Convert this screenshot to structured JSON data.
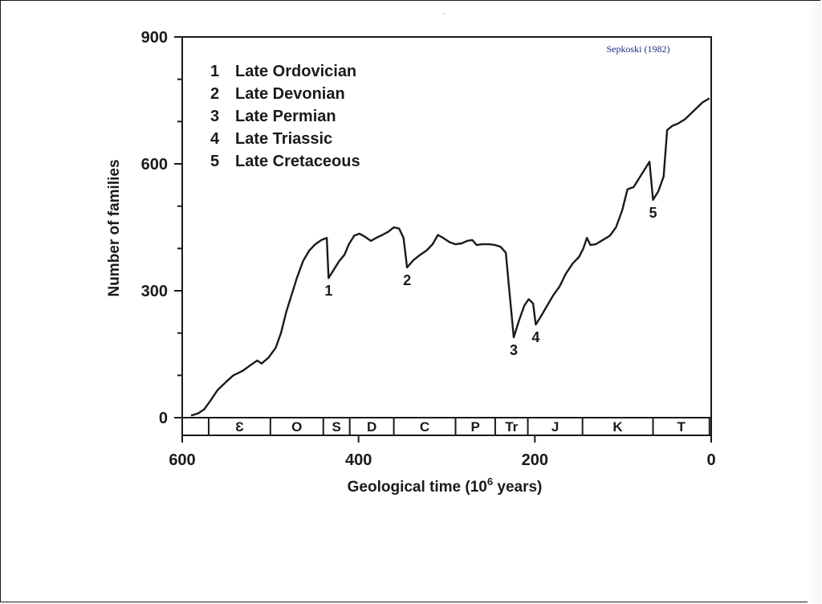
{
  "chart_data": {
    "type": "line",
    "title": "",
    "xlabel": "Geological time (10⁶ years)",
    "ylabel": "Number of families",
    "source_note": "Sepkoski (1982)",
    "xlim": [
      600,
      0
    ],
    "ylim": [
      0,
      900
    ],
    "x_ticks": [
      600,
      400,
      200,
      0
    ],
    "y_ticks": [
      0,
      300,
      600,
      900
    ],
    "grid": false,
    "legend_position": "top-left",
    "legend": [
      {
        "num": "1",
        "label": "Late Ordovician"
      },
      {
        "num": "2",
        "label": "Late Devonian"
      },
      {
        "num": "3",
        "label": "Late Permian"
      },
      {
        "num": "4",
        "label": "Late Triassic"
      },
      {
        "num": "5",
        "label": "Late Cretaceous"
      }
    ],
    "series": [
      {
        "points": [
          [
            590,
            5
          ],
          [
            582,
            10
          ],
          [
            575,
            20
          ],
          [
            568,
            40
          ],
          [
            560,
            65
          ],
          [
            550,
            85
          ],
          [
            542,
            100
          ],
          [
            532,
            110
          ],
          [
            522,
            125
          ],
          [
            515,
            135
          ],
          [
            510,
            128
          ],
          [
            502,
            142
          ],
          [
            494,
            165
          ],
          [
            488,
            200
          ],
          [
            482,
            250
          ],
          [
            476,
            290
          ],
          [
            470,
            330
          ],
          [
            463,
            370
          ],
          [
            456,
            395
          ],
          [
            449,
            410
          ],
          [
            442,
            420
          ],
          [
            436,
            425
          ],
          [
            434,
            330
          ],
          [
            428,
            350
          ],
          [
            422,
            370
          ],
          [
            416,
            385
          ],
          [
            411,
            410
          ],
          [
            405,
            430
          ],
          [
            399,
            435
          ],
          [
            393,
            428
          ],
          [
            386,
            418
          ],
          [
            380,
            425
          ],
          [
            373,
            432
          ],
          [
            366,
            440
          ],
          [
            360,
            450
          ],
          [
            354,
            447
          ],
          [
            349,
            425
          ],
          [
            345,
            355
          ],
          [
            338,
            372
          ],
          [
            330,
            385
          ],
          [
            323,
            395
          ],
          [
            316,
            410
          ],
          [
            310,
            432
          ],
          [
            304,
            425
          ],
          [
            297,
            415
          ],
          [
            290,
            410
          ],
          [
            283,
            412
          ],
          [
            277,
            418
          ],
          [
            271,
            420
          ],
          [
            266,
            408
          ],
          [
            260,
            410
          ],
          [
            252,
            410
          ],
          [
            245,
            408
          ],
          [
            239,
            404
          ],
          [
            233,
            390
          ],
          [
            229,
            300
          ],
          [
            224,
            190
          ],
          [
            218,
            230
          ],
          [
            212,
            265
          ],
          [
            207,
            280
          ],
          [
            202,
            270
          ],
          [
            199,
            220
          ],
          [
            193,
            240
          ],
          [
            186,
            265
          ],
          [
            179,
            290
          ],
          [
            172,
            310
          ],
          [
            165,
            340
          ],
          [
            157,
            365
          ],
          [
            150,
            380
          ],
          [
            145,
            400
          ],
          [
            141,
            425
          ],
          [
            137,
            408
          ],
          [
            131,
            410
          ],
          [
            123,
            420
          ],
          [
            115,
            430
          ],
          [
            108,
            450
          ],
          [
            101,
            490
          ],
          [
            95,
            540
          ],
          [
            88,
            545
          ],
          [
            82,
            565
          ],
          [
            76,
            585
          ],
          [
            70,
            605
          ],
          [
            66,
            515
          ],
          [
            60,
            535
          ],
          [
            54,
            570
          ],
          [
            50,
            680
          ],
          [
            44,
            690
          ],
          [
            38,
            695
          ],
          [
            30,
            705
          ],
          [
            20,
            725
          ],
          [
            10,
            745
          ],
          [
            2,
            755
          ]
        ]
      }
    ],
    "events": [
      {
        "num": "1",
        "x": 434,
        "y": 330
      },
      {
        "num": "2",
        "x": 345,
        "y": 355
      },
      {
        "num": "3",
        "x": 224,
        "y": 190
      },
      {
        "num": "4",
        "x": 199,
        "y": 220
      },
      {
        "num": "5",
        "x": 66,
        "y": 515
      }
    ],
    "periods": [
      {
        "label": "Ɛ",
        "from": 570,
        "to": 500
      },
      {
        "label": "O",
        "from": 500,
        "to": 440
      },
      {
        "label": "S",
        "from": 440,
        "to": 410
      },
      {
        "label": "D",
        "from": 410,
        "to": 360
      },
      {
        "label": "C",
        "from": 360,
        "to": 290
      },
      {
        "label": "P",
        "from": 290,
        "to": 245
      },
      {
        "label": "Tr",
        "from": 245,
        "to": 208
      },
      {
        "label": "J",
        "from": 208,
        "to": 146
      },
      {
        "label": "K",
        "from": 146,
        "to": 66
      },
      {
        "label": "T",
        "from": 66,
        "to": 2
      }
    ]
  }
}
